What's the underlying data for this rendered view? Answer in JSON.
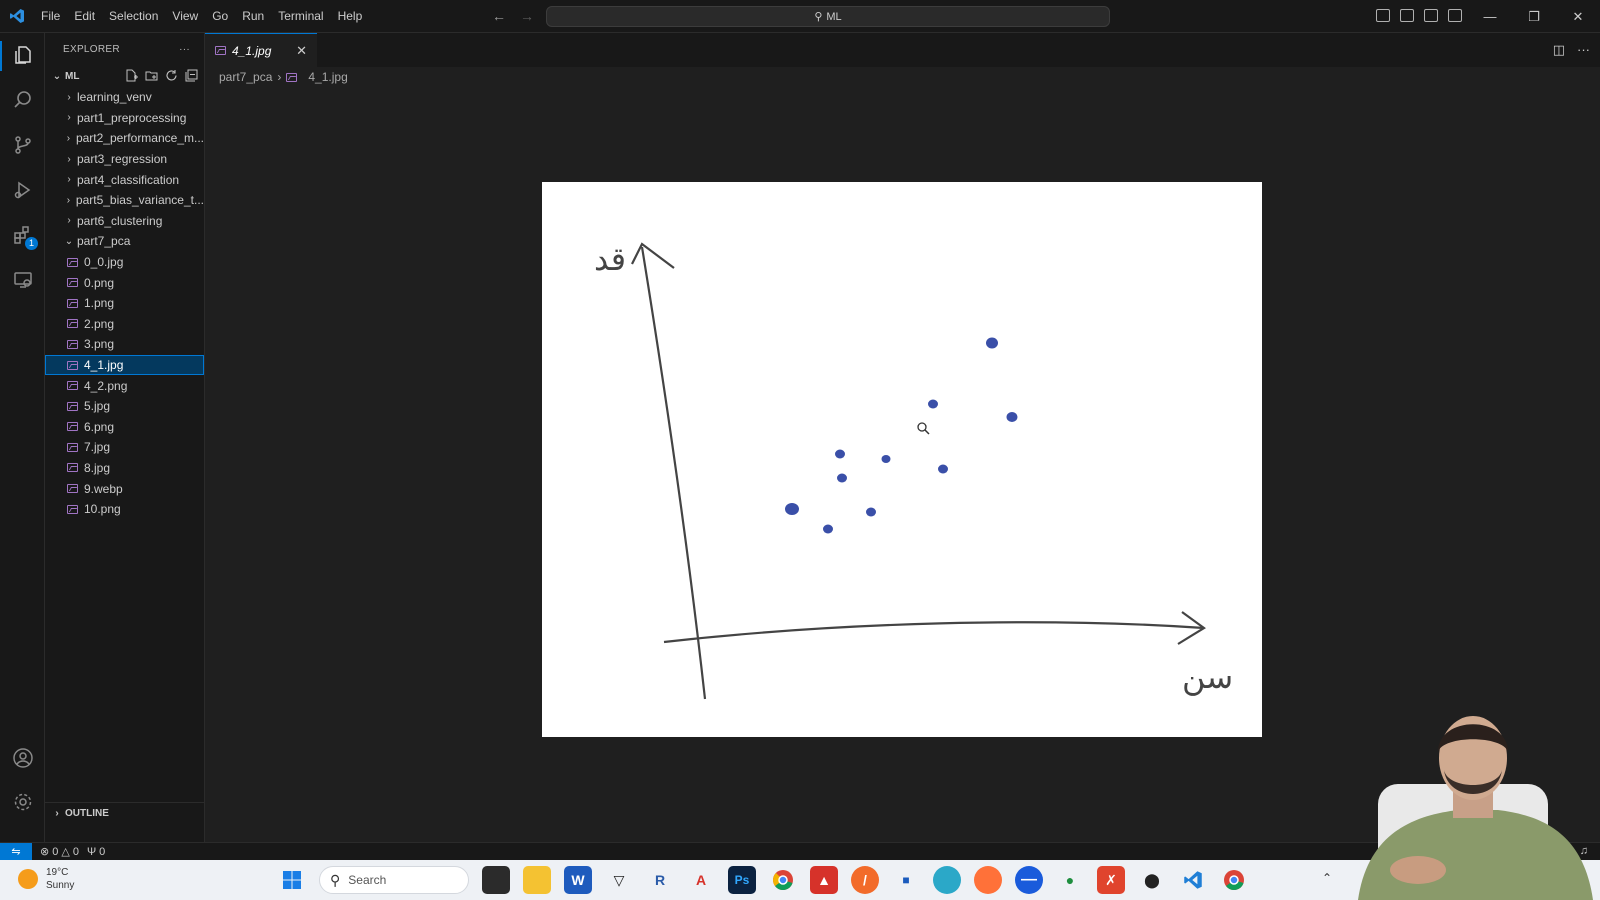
{
  "menu": [
    "File",
    "Edit",
    "Selection",
    "View",
    "Go",
    "Run",
    "Terminal",
    "Help"
  ],
  "command_center": {
    "text": "ML"
  },
  "activity_bar": {
    "items": [
      "explorer-icon",
      "search-icon",
      "source-control-icon",
      "run-debug-icon",
      "extensions-icon",
      "remote-explorer-icon"
    ],
    "extensions_badge": "1",
    "bottom": [
      "account-icon",
      "settings-gear-icon"
    ]
  },
  "explorer": {
    "title": "EXPLORER",
    "root": "ML",
    "folders_collapsed": [
      "learning_venv",
      "part1_preprocessing",
      "part2_performance_m...",
      "part3_regression",
      "part4_classification",
      "part5_bias_variance_t...",
      "part6_clustering"
    ],
    "folder_expanded": "part7_pca",
    "files": [
      "0_0.jpg",
      "0.png",
      "1.png",
      "2.png",
      "3.png",
      "4_1.jpg",
      "4_2.png",
      "5.jpg",
      "6.png",
      "7.jpg",
      "8.jpg",
      "9.webp",
      "10.png"
    ],
    "selected_file": "4_1.jpg",
    "outline_label": "OUTLINE"
  },
  "tab": {
    "label": "4_1.jpg"
  },
  "breadcrumb": {
    "folder": "part7_pca",
    "file": "4_1.jpg"
  },
  "drawing": {
    "y_axis_label": "قد",
    "x_axis_label": "سن"
  },
  "statusbar": {
    "errors": "0",
    "warnings": "0",
    "ports": "0"
  },
  "taskbar": {
    "temperature": "19°C",
    "condition": "Sunny",
    "search_label": "Search"
  },
  "colors": {
    "accent": "#0078d4",
    "dots": "#3a4fa8",
    "selection": "#04395e"
  }
}
